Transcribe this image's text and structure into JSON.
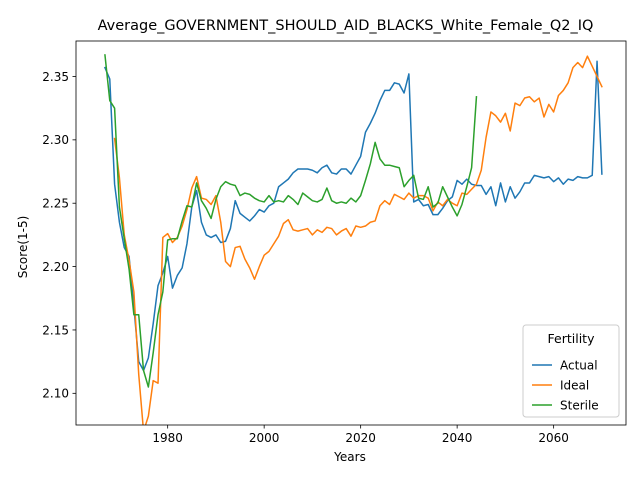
{
  "chart_data": {
    "type": "line",
    "title": "Average_GOVERNMENT_SHOULD_AID_BLACKS_White_Female_Q2_IQ",
    "xlabel": "Years",
    "ylabel": "Score(1-5)",
    "xlim": [
      1961,
      2075
    ],
    "ylim": [
      2.075,
      2.378
    ],
    "xticks": [
      1980,
      2000,
      2020,
      2040,
      2060
    ],
    "yticks": [
      2.1,
      2.15,
      2.2,
      2.25,
      2.3,
      2.35
    ],
    "xtick_labels": [
      "1980",
      "2000",
      "2020",
      "2040",
      "2060"
    ],
    "ytick_labels": [
      "2.10",
      "2.15",
      "2.20",
      "2.25",
      "2.30",
      "2.35"
    ],
    "grid": false,
    "legend": {
      "title": "Fertility",
      "position": "lower right"
    },
    "series": [
      {
        "name": "Actual",
        "color": "#1f77b4",
        "points": [
          [
            1967,
            2.357
          ],
          [
            1968,
            2.348
          ],
          [
            1969,
            2.265
          ],
          [
            1970,
            2.235
          ],
          [
            1971,
            2.215
          ],
          [
            1972,
            2.208
          ],
          [
            1973,
            2.168
          ],
          [
            1974,
            2.125
          ],
          [
            1975,
            2.118
          ],
          [
            1976,
            2.128
          ],
          [
            1977,
            2.155
          ],
          [
            1978,
            2.185
          ],
          [
            1979,
            2.195
          ],
          [
            1980,
            2.208
          ],
          [
            1981,
            2.183
          ],
          [
            1982,
            2.193
          ],
          [
            1983,
            2.199
          ],
          [
            1984,
            2.218
          ],
          [
            1985,
            2.247
          ],
          [
            1986,
            2.26
          ],
          [
            1987,
            2.235
          ],
          [
            1988,
            2.225
          ],
          [
            1989,
            2.223
          ],
          [
            1990,
            2.225
          ],
          [
            1991,
            2.219
          ],
          [
            1992,
            2.22
          ],
          [
            1993,
            2.23
          ],
          [
            1994,
            2.252
          ],
          [
            1995,
            2.242
          ],
          [
            1996,
            2.239
          ],
          [
            1997,
            2.236
          ],
          [
            1998,
            2.24
          ],
          [
            1999,
            2.245
          ],
          [
            2000,
            2.243
          ],
          [
            2001,
            2.248
          ],
          [
            2002,
            2.25
          ],
          [
            2003,
            2.263
          ],
          [
            2004,
            2.266
          ],
          [
            2005,
            2.269
          ],
          [
            2006,
            2.274
          ],
          [
            2007,
            2.277
          ],
          [
            2008,
            2.277
          ],
          [
            2009,
            2.277
          ],
          [
            2010,
            2.276
          ],
          [
            2011,
            2.274
          ],
          [
            2012,
            2.278
          ],
          [
            2013,
            2.28
          ],
          [
            2014,
            2.274
          ],
          [
            2015,
            2.273
          ],
          [
            2016,
            2.277
          ],
          [
            2017,
            2.277
          ],
          [
            2018,
            2.273
          ],
          [
            2019,
            2.28
          ],
          [
            2020,
            2.287
          ],
          [
            2021,
            2.306
          ],
          [
            2022,
            2.313
          ],
          [
            2023,
            2.321
          ],
          [
            2024,
            2.331
          ],
          [
            2025,
            2.339
          ],
          [
            2026,
            2.339
          ],
          [
            2027,
            2.345
          ],
          [
            2028,
            2.344
          ],
          [
            2029,
            2.337
          ],
          [
            2030,
            2.352
          ],
          [
            2031,
            2.251
          ],
          [
            2032,
            2.253
          ],
          [
            2033,
            2.248
          ],
          [
            2034,
            2.249
          ],
          [
            2035,
            2.241
          ],
          [
            2036,
            2.241
          ],
          [
            2037,
            2.246
          ],
          [
            2038,
            2.252
          ],
          [
            2039,
            2.255
          ],
          [
            2040,
            2.268
          ],
          [
            2041,
            2.265
          ],
          [
            2042,
            2.269
          ],
          [
            2043,
            2.265
          ],
          [
            2044,
            2.264
          ],
          [
            2045,
            2.264
          ],
          [
            2046,
            2.257
          ],
          [
            2047,
            2.263
          ],
          [
            2048,
            2.248
          ],
          [
            2049,
            2.266
          ],
          [
            2050,
            2.251
          ],
          [
            2051,
            2.263
          ],
          [
            2052,
            2.254
          ],
          [
            2053,
            2.259
          ],
          [
            2054,
            2.266
          ],
          [
            2055,
            2.266
          ],
          [
            2056,
            2.272
          ],
          [
            2057,
            2.271
          ],
          [
            2058,
            2.27
          ],
          [
            2059,
            2.271
          ],
          [
            2060,
            2.267
          ],
          [
            2061,
            2.27
          ],
          [
            2062,
            2.265
          ],
          [
            2063,
            2.269
          ],
          [
            2064,
            2.268
          ],
          [
            2065,
            2.271
          ],
          [
            2066,
            2.27
          ],
          [
            2067,
            2.27
          ],
          [
            2068,
            2.272
          ],
          [
            2069,
            2.362
          ],
          [
            2070,
            2.273
          ]
        ]
      },
      {
        "name": "Ideal",
        "color": "#ff7f0e",
        "points": [
          [
            1969,
            2.301
          ],
          [
            1970,
            2.27
          ],
          [
            1971,
            2.225
          ],
          [
            1972,
            2.205
          ],
          [
            1973,
            2.18
          ],
          [
            1974,
            2.115
          ],
          [
            1975,
            2.07
          ],
          [
            1976,
            2.082
          ],
          [
            1977,
            2.11
          ],
          [
            1978,
            2.108
          ],
          [
            1979,
            2.223
          ],
          [
            1980,
            2.226
          ],
          [
            1981,
            2.219
          ],
          [
            1982,
            2.223
          ],
          [
            1983,
            2.232
          ],
          [
            1984,
            2.245
          ],
          [
            1985,
            2.262
          ],
          [
            1986,
            2.271
          ],
          [
            1987,
            2.254
          ],
          [
            1988,
            2.253
          ],
          [
            1989,
            2.249
          ],
          [
            1990,
            2.256
          ],
          [
            1991,
            2.235
          ],
          [
            1992,
            2.204
          ],
          [
            1993,
            2.2
          ],
          [
            1994,
            2.215
          ],
          [
            1995,
            2.216
          ],
          [
            1996,
            2.206
          ],
          [
            1997,
            2.199
          ],
          [
            1998,
            2.19
          ],
          [
            1999,
            2.2
          ],
          [
            2000,
            2.209
          ],
          [
            2001,
            2.212
          ],
          [
            2002,
            2.218
          ],
          [
            2003,
            2.224
          ],
          [
            2004,
            2.234
          ],
          [
            2005,
            2.237
          ],
          [
            2006,
            2.229
          ],
          [
            2007,
            2.228
          ],
          [
            2008,
            2.229
          ],
          [
            2009,
            2.23
          ],
          [
            2010,
            2.225
          ],
          [
            2011,
            2.229
          ],
          [
            2012,
            2.227
          ],
          [
            2013,
            2.231
          ],
          [
            2014,
            2.23
          ],
          [
            2015,
            2.225
          ],
          [
            2016,
            2.228
          ],
          [
            2017,
            2.23
          ],
          [
            2018,
            2.224
          ],
          [
            2019,
            2.232
          ],
          [
            2020,
            2.231
          ],
          [
            2021,
            2.232
          ],
          [
            2022,
            2.235
          ],
          [
            2023,
            2.236
          ],
          [
            2024,
            2.248
          ],
          [
            2025,
            2.252
          ],
          [
            2026,
            2.249
          ],
          [
            2027,
            2.257
          ],
          [
            2028,
            2.255
          ],
          [
            2029,
            2.253
          ],
          [
            2030,
            2.258
          ],
          [
            2031,
            2.254
          ],
          [
            2032,
            2.256
          ],
          [
            2033,
            2.256
          ],
          [
            2034,
            2.254
          ],
          [
            2035,
            2.244
          ],
          [
            2036,
            2.251
          ],
          [
            2037,
            2.248
          ],
          [
            2038,
            2.253
          ],
          [
            2039,
            2.25
          ],
          [
            2040,
            2.248
          ],
          [
            2041,
            2.258
          ],
          [
            2042,
            2.257
          ],
          [
            2043,
            2.261
          ],
          [
            2044,
            2.265
          ],
          [
            2045,
            2.276
          ],
          [
            2046,
            2.302
          ],
          [
            2047,
            2.322
          ],
          [
            2048,
            2.319
          ],
          [
            2049,
            2.314
          ],
          [
            2050,
            2.321
          ],
          [
            2051,
            2.307
          ],
          [
            2052,
            2.329
          ],
          [
            2053,
            2.327
          ],
          [
            2054,
            2.333
          ],
          [
            2055,
            2.334
          ],
          [
            2056,
            2.33
          ],
          [
            2057,
            2.333
          ],
          [
            2058,
            2.318
          ],
          [
            2059,
            2.328
          ],
          [
            2060,
            2.322
          ],
          [
            2061,
            2.335
          ],
          [
            2062,
            2.339
          ],
          [
            2063,
            2.345
          ],
          [
            2064,
            2.357
          ],
          [
            2065,
            2.361
          ],
          [
            2066,
            2.357
          ],
          [
            2067,
            2.366
          ],
          [
            2068,
            2.358
          ],
          [
            2069,
            2.35
          ],
          [
            2070,
            2.342
          ]
        ]
      },
      {
        "name": "Sterile",
        "color": "#2ca02c",
        "points": [
          [
            1967,
            2.367
          ],
          [
            1968,
            2.331
          ],
          [
            1969,
            2.325
          ],
          [
            1970,
            2.247
          ],
          [
            1971,
            2.222
          ],
          [
            1972,
            2.198
          ],
          [
            1973,
            2.162
          ],
          [
            1974,
            2.162
          ],
          [
            1975,
            2.118
          ],
          [
            1976,
            2.105
          ],
          [
            1977,
            2.132
          ],
          [
            1978,
            2.162
          ],
          [
            1979,
            2.18
          ],
          [
            1980,
            2.221
          ],
          [
            1981,
            2.222
          ],
          [
            1982,
            2.222
          ],
          [
            1983,
            2.236
          ],
          [
            1984,
            2.248
          ],
          [
            1985,
            2.247
          ],
          [
            1986,
            2.266
          ],
          [
            1987,
            2.252
          ],
          [
            1988,
            2.246
          ],
          [
            1989,
            2.238
          ],
          [
            1990,
            2.253
          ],
          [
            1991,
            2.263
          ],
          [
            1992,
            2.267
          ],
          [
            1993,
            2.265
          ],
          [
            1994,
            2.264
          ],
          [
            1995,
            2.256
          ],
          [
            1996,
            2.258
          ],
          [
            1997,
            2.257
          ],
          [
            1998,
            2.254
          ],
          [
            1999,
            2.252
          ],
          [
            2000,
            2.251
          ],
          [
            2001,
            2.256
          ],
          [
            2002,
            2.251
          ],
          [
            2003,
            2.252
          ],
          [
            2004,
            2.251
          ],
          [
            2005,
            2.256
          ],
          [
            2006,
            2.253
          ],
          [
            2007,
            2.249
          ],
          [
            2008,
            2.258
          ],
          [
            2009,
            2.255
          ],
          [
            2010,
            2.252
          ],
          [
            2011,
            2.251
          ],
          [
            2012,
            2.253
          ],
          [
            2013,
            2.262
          ],
          [
            2014,
            2.252
          ],
          [
            2015,
            2.25
          ],
          [
            2016,
            2.251
          ],
          [
            2017,
            2.25
          ],
          [
            2018,
            2.254
          ],
          [
            2019,
            2.251
          ],
          [
            2020,
            2.256
          ],
          [
            2021,
            2.268
          ],
          [
            2022,
            2.281
          ],
          [
            2023,
            2.298
          ],
          [
            2024,
            2.285
          ],
          [
            2025,
            2.28
          ],
          [
            2026,
            2.28
          ],
          [
            2027,
            2.279
          ],
          [
            2028,
            2.278
          ],
          [
            2029,
            2.263
          ],
          [
            2030,
            2.268
          ],
          [
            2031,
            2.272
          ],
          [
            2032,
            2.254
          ],
          [
            2033,
            2.253
          ],
          [
            2034,
            2.263
          ],
          [
            2035,
            2.247
          ],
          [
            2036,
            2.25
          ],
          [
            2037,
            2.263
          ],
          [
            2038,
            2.255
          ],
          [
            2039,
            2.247
          ],
          [
            2040,
            2.24
          ],
          [
            2041,
            2.249
          ],
          [
            2042,
            2.263
          ],
          [
            2043,
            2.278
          ],
          [
            2044,
            2.334
          ]
        ]
      }
    ]
  }
}
